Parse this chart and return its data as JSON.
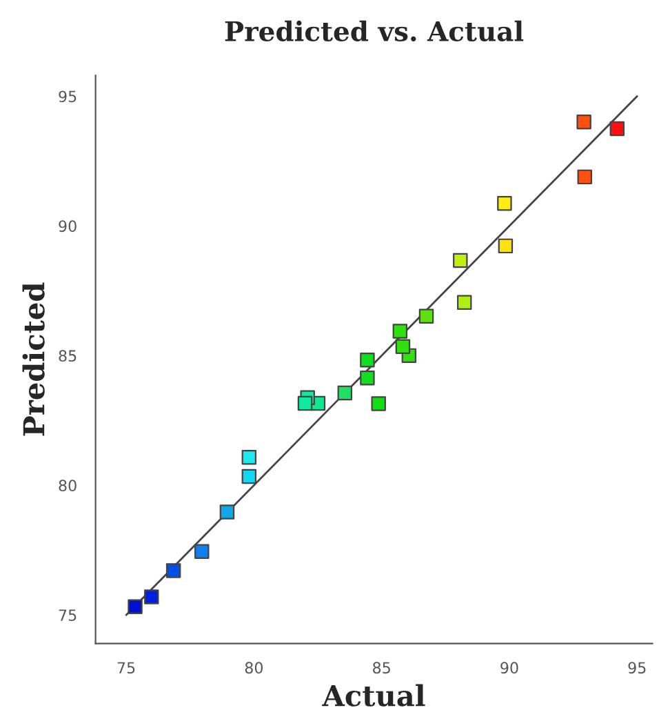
{
  "chart_data": {
    "type": "scatter",
    "title": "Predicted vs. Actual",
    "xlabel": "Actual",
    "ylabel": "Predicted",
    "xlim": [
      73.8,
      95.6
    ],
    "ylim": [
      73.9,
      95.8
    ],
    "xticks": [
      75,
      80,
      85,
      90,
      95
    ],
    "yticks": [
      75,
      80,
      85,
      90,
      95
    ],
    "grid": false,
    "series": [
      {
        "marker": "square",
        "x": [
          75.35,
          75.99,
          76.85,
          77.96,
          78.95,
          79.81,
          79.81,
          82.0,
          82.1,
          82.51,
          83.56,
          84.44,
          84.44,
          84.88,
          85.72,
          85.83,
          86.07,
          86.75,
          88.08,
          88.24,
          89.81,
          89.85,
          92.92,
          92.95,
          94.22
        ],
        "values": [
          75.32,
          75.7,
          76.71,
          77.45,
          78.97,
          80.34,
          81.08,
          83.16,
          83.38,
          83.16,
          83.56,
          84.83,
          84.14,
          83.15,
          85.94,
          85.35,
          85.0,
          86.52,
          88.67,
          87.05,
          90.87,
          89.23,
          94.01,
          91.89,
          93.75
        ],
        "colors": [
          "#0010d0",
          "#0020e0",
          "#0050e8",
          "#1080f0",
          "#10a8e8",
          "#10d8f0",
          "#20e8f0",
          "#10e8a0",
          "#10e8a0",
          "#10e890",
          "#20e060",
          "#10e020",
          "#10e020",
          "#10e010",
          "#30e010",
          "#30e010",
          "#30e010",
          "#60e010",
          "#c0f010",
          "#b0f010",
          "#ffee10",
          "#ffe010",
          "#ff5010",
          "#ff5010",
          "#ff1010"
        ]
      },
      {
        "type": "line",
        "marker": "none",
        "x": [
          75,
          95
        ],
        "values": [
          75,
          95
        ],
        "color": "#444444"
      }
    ]
  }
}
